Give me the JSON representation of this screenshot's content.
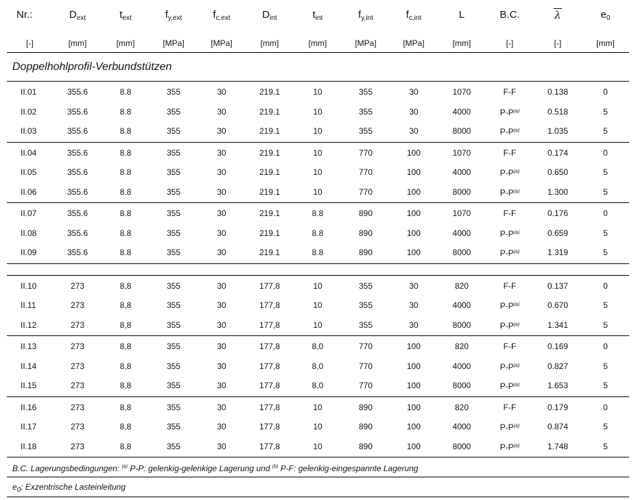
{
  "header": {
    "symbols": [
      {
        "main": "Nr.:",
        "sub": ""
      },
      {
        "main": "D",
        "sub": "ext"
      },
      {
        "main": "t",
        "sub": "ext"
      },
      {
        "main": "f",
        "sub": "y,ext"
      },
      {
        "main": "f",
        "sub": "c,ext"
      },
      {
        "main": "D",
        "sub": "int"
      },
      {
        "main": "t",
        "sub": "int"
      },
      {
        "main": "f",
        "sub": "y,int"
      },
      {
        "main": "f",
        "sub": "c,int"
      },
      {
        "main": "L",
        "sub": ""
      },
      {
        "main": "B.C.",
        "sub": ""
      },
      {
        "main": "λ",
        "sub": ""
      },
      {
        "main": "e",
        "sub": "0"
      }
    ],
    "units": [
      "[-]",
      "[mm]",
      "[mm]",
      "[MPa]",
      "[MPa]",
      "[mm]",
      "[mm]",
      "[MPa]",
      "[MPa]",
      "[mm]",
      "[-]",
      "[-]",
      "[mm]"
    ]
  },
  "section_title": "Doppelhohlprofil-Verbundstützen",
  "groups": [
    [
      [
        "II.01",
        "355.6",
        "8.8",
        "355",
        "30",
        "219.1",
        "10",
        "355",
        "30",
        "1070",
        "F-F",
        "0.138",
        "0"
      ],
      [
        "II.02",
        "355.6",
        "8.8",
        "355",
        "30",
        "219.1",
        "10",
        "355",
        "30",
        "4000",
        "P-P(a)",
        "0.518",
        "5"
      ],
      [
        "II.03",
        "355.6",
        "8.8",
        "355",
        "30",
        "219.1",
        "10",
        "355",
        "30",
        "8000",
        "P-P(a)",
        "1.035",
        "5"
      ]
    ],
    [
      [
        "II.04",
        "355.6",
        "8.8",
        "355",
        "30",
        "219.1",
        "10",
        "770",
        "100",
        "1070",
        "F-F",
        "0.174",
        "0"
      ],
      [
        "II.05",
        "355.6",
        "8.8",
        "355",
        "30",
        "219.1",
        "10",
        "770",
        "100",
        "4000",
        "P-P(a)",
        "0.650",
        "5"
      ],
      [
        "II.06",
        "355.6",
        "8.8",
        "355",
        "30",
        "219.1",
        "10",
        "770",
        "100",
        "8000",
        "P-P(a)",
        "1.300",
        "5"
      ]
    ],
    [
      [
        "II.07",
        "355.6",
        "8.8",
        "355",
        "30",
        "219.1",
        "8.8",
        "890",
        "100",
        "1070",
        "F-F",
        "0.176",
        "0"
      ],
      [
        "II.08",
        "355.6",
        "8.8",
        "355",
        "30",
        "219.1",
        "8.8",
        "890",
        "100",
        "4000",
        "P-P(a)",
        "0.659",
        "5"
      ],
      [
        "II.09",
        "355.6",
        "8.8",
        "355",
        "30",
        "219.1",
        "8.8",
        "890",
        "100",
        "8000",
        "P-P(a)",
        "1.319",
        "5"
      ]
    ],
    "spacer",
    [
      [
        "II.10",
        "273",
        "8,8",
        "355",
        "30",
        "177,8",
        "10",
        "355",
        "30",
        "820",
        "F-F",
        "0.137",
        "0"
      ],
      [
        "II.11",
        "273",
        "8,8",
        "355",
        "30",
        "177,8",
        "10",
        "355",
        "30",
        "4000",
        "P-P(a)",
        "0.670",
        "5"
      ],
      [
        "II.12",
        "273",
        "8,8",
        "355",
        "30",
        "177,8",
        "10",
        "355",
        "30",
        "8000",
        "P-P(a)",
        "1.341",
        "5"
      ]
    ],
    [
      [
        "II.13",
        "273",
        "8,8",
        "355",
        "30",
        "177,8",
        "8,0",
        "770",
        "100",
        "820",
        "F-F",
        "0.169",
        "0"
      ],
      [
        "II.14",
        "273",
        "8,8",
        "355",
        "30",
        "177,8",
        "8,0",
        "770",
        "100",
        "4000",
        "P-P(a)",
        "0.827",
        "5"
      ],
      [
        "II.15",
        "273",
        "8,8",
        "355",
        "30",
        "177,8",
        "8,0",
        "770",
        "100",
        "8000",
        "P-P(a)",
        "1.653",
        "5"
      ]
    ],
    [
      [
        "II.16",
        "273",
        "8,8",
        "355",
        "30",
        "177,8",
        "10",
        "890",
        "100",
        "820",
        "F-F",
        "0.179",
        "0"
      ],
      [
        "II.17",
        "273",
        "8,8",
        "355",
        "30",
        "177,8",
        "10",
        "890",
        "100",
        "4000",
        "P-P(a)",
        "0.874",
        "5"
      ],
      [
        "II.18",
        "273",
        "8,8",
        "355",
        "30",
        "177,8",
        "10",
        "890",
        "100",
        "8000",
        "P-P(a)",
        "1.748",
        "5"
      ]
    ]
  ],
  "notes": {
    "bc": {
      "prefix": "B.C. Lagerungsbedingungen: ",
      "sup_a": "(a)",
      "text_a": " P-P: gelenkig-gelenkige Lagerung und ",
      "sup_b": "(b)",
      "text_b": " P-F: gelenkig-eingespannte Lagerung"
    },
    "e0": {
      "main": "e",
      "sub": "0",
      "text": ": Exzentrische Lasteinleitung"
    }
  }
}
